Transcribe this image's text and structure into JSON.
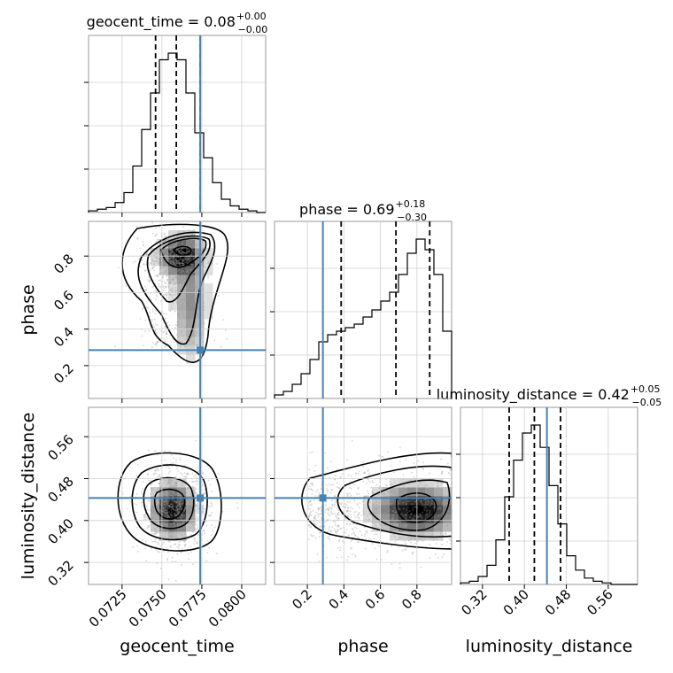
{
  "chart_data": {
    "type": "corner",
    "parameters": [
      "geocent_time",
      "phase",
      "luminosity_distance"
    ],
    "titles": [
      {
        "name": "geocent_time",
        "value": "0.08",
        "plus": "+0.00",
        "minus": "−0.00"
      },
      {
        "name": "phase",
        "value": "0.69",
        "plus": "+0.18",
        "minus": "−0.30"
      },
      {
        "name": "luminosity_distance",
        "value": "0.42",
        "plus": "+0.05",
        "minus": "−0.05"
      }
    ],
    "ranges": {
      "geocent_time": [
        0.0704,
        0.0815
      ],
      "phase": [
        0.02,
        0.99
      ],
      "luminosity_distance": [
        0.278,
        0.616
      ]
    },
    "ticks": {
      "geocent_time": [
        "0.0725",
        "0.0750",
        "0.0775",
        "0.0800"
      ],
      "phase": [
        "0.2",
        "0.4",
        "0.6",
        "0.8"
      ],
      "luminosity_distance": [
        "0.32",
        "0.40",
        "0.48",
        "0.56"
      ]
    },
    "injection": {
      "geocent_time": 0.0774,
      "phase": 0.285,
      "luminosity_distance": 0.443
    },
    "quantiles": {
      "geocent_time": [
        0.0746,
        0.0759,
        0.0774
      ],
      "phase": [
        0.385,
        0.685,
        0.87
      ],
      "luminosity_distance": [
        0.371,
        0.419,
        0.469
      ]
    },
    "histograms": {
      "geocent_time": {
        "start": 0.0704,
        "step": 0.000555,
        "counts": [
          1,
          2,
          3,
          6,
          12,
          28,
          50,
          72,
          92,
          96,
          92,
          72,
          48,
          33,
          18,
          8,
          4,
          2,
          1,
          0
        ]
      },
      "phase": {
        "start": 0.02,
        "step": 0.0485,
        "counts": [
          2,
          4,
          8,
          14,
          22,
          32,
          36,
          38,
          40,
          42,
          46,
          50,
          55,
          60,
          70,
          82,
          90,
          84,
          70,
          38
        ]
      },
      "luminosity_distance": {
        "start": 0.278,
        "step": 0.0169,
        "counts": [
          1,
          2,
          5,
          12,
          28,
          55,
          78,
          95,
          100,
          86,
          62,
          38,
          18,
          9,
          4,
          2,
          1,
          0,
          0,
          0
        ]
      }
    },
    "grid": true
  }
}
